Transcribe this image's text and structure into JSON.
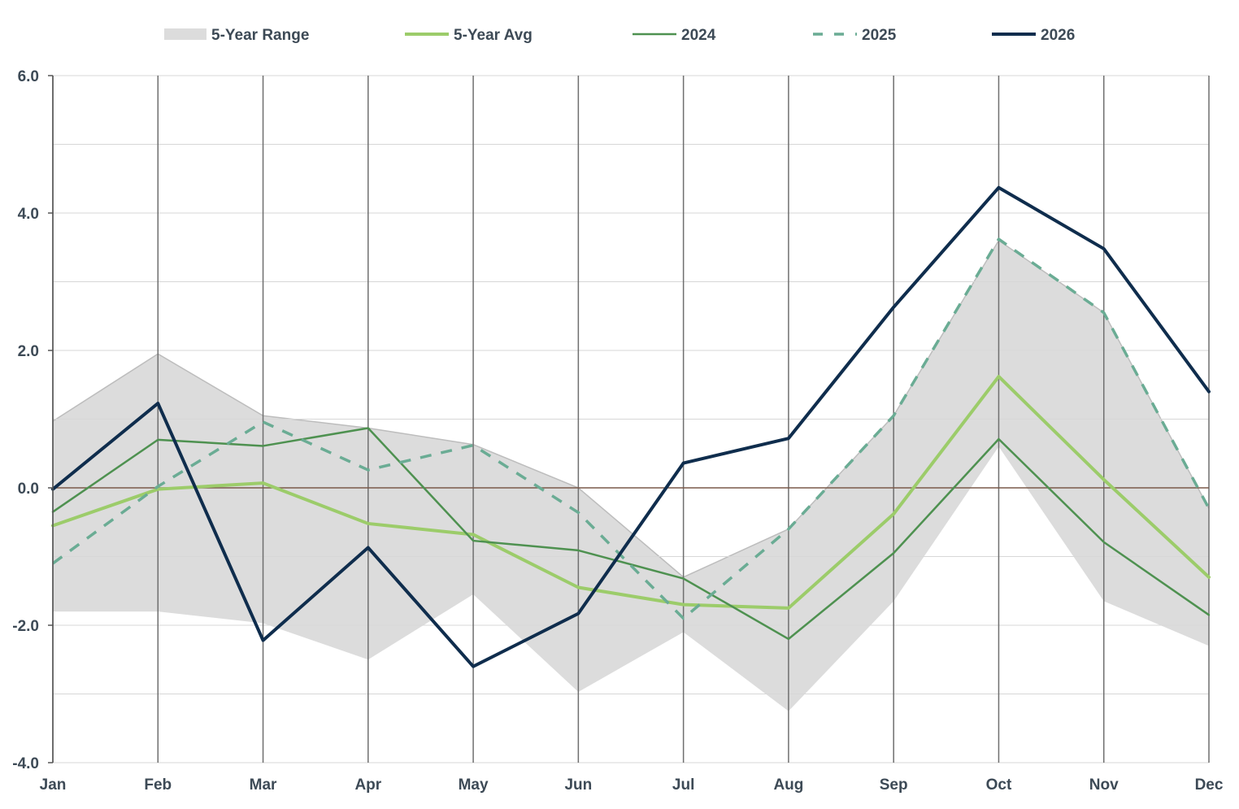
{
  "chart_data": {
    "type": "line",
    "title": "",
    "xlabel": "",
    "ylabel": "",
    "ylim": [
      -4.0,
      6.0
    ],
    "yticks": [
      "-4.0",
      "-2.0",
      "0.0",
      "2.0",
      "4.0",
      "6.0"
    ],
    "ytick_values": [
      -4,
      -2,
      0,
      2,
      4,
      6
    ],
    "categories": [
      "Jan",
      "Feb",
      "Mar",
      "Apr",
      "May",
      "Jun",
      "Jul",
      "Aug",
      "Sep",
      "Oct",
      "Nov",
      "Dec"
    ],
    "legend_position": "top",
    "range": {
      "name": "5-Year Range",
      "color": "#dcdcdc",
      "edge_color": "#bdbdbd",
      "upper": [
        0.97,
        1.95,
        1.05,
        0.87,
        0.63,
        0.0,
        -1.3,
        -0.6,
        1.05,
        3.6,
        2.55,
        -0.3
      ],
      "lower": [
        -1.8,
        -1.8,
        -1.97,
        -2.5,
        -1.55,
        -2.97,
        -2.1,
        -3.25,
        -1.65,
        0.6,
        -1.65,
        -2.3
      ]
    },
    "series": [
      {
        "name": "5-Year Avg",
        "color": "#9ccc6a",
        "width": 4,
        "dash": "",
        "values": [
          -0.55,
          -0.02,
          0.07,
          -0.52,
          -0.68,
          -1.45,
          -1.7,
          -1.75,
          -0.38,
          1.62,
          0.12,
          -1.3
        ]
      },
      {
        "name": "2024",
        "color": "#4e9150",
        "width": 2.5,
        "dash": "",
        "values": [
          -0.35,
          0.7,
          0.61,
          0.87,
          -0.77,
          -0.91,
          -1.32,
          -2.2,
          -0.95,
          0.71,
          -0.79,
          -1.85
        ]
      },
      {
        "name": "2025",
        "color": "#6aac94",
        "width": 3.5,
        "dash": "14,12",
        "values": [
          -1.1,
          0.02,
          0.96,
          0.26,
          0.62,
          -0.36,
          -1.9,
          -0.6,
          1.05,
          3.62,
          2.55,
          -0.3
        ]
      },
      {
        "name": "2026",
        "color": "#0f2d4d",
        "width": 4,
        "dash": "",
        "values": [
          -0.02,
          1.23,
          -2.22,
          -0.87,
          -2.6,
          -1.83,
          0.36,
          0.72,
          2.63,
          4.37,
          3.48,
          1.4
        ]
      }
    ]
  }
}
